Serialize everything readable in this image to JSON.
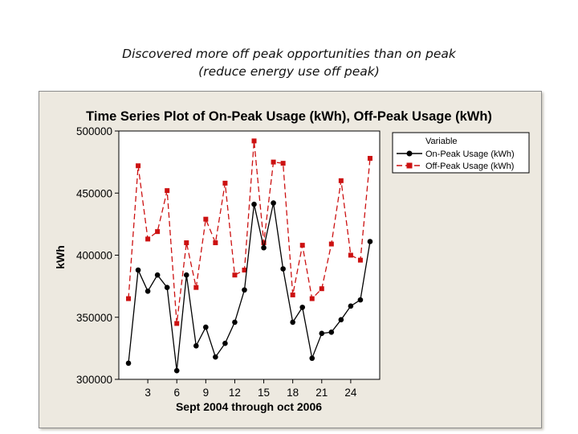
{
  "caption": {
    "line1": "Discovered more off peak opportunities than on peak",
    "line2": "(reduce energy use off peak)"
  },
  "chart_data": {
    "type": "line",
    "title": "Time Series Plot of On-Peak Usage (kWh), Off-Peak Usage (kWh)",
    "xlabel": "Sept 2004 through oct 2006",
    "ylabel": "kWh",
    "xlim": [
      0,
      27
    ],
    "ylim": [
      300000,
      500000
    ],
    "x_ticks": [
      3,
      6,
      9,
      12,
      15,
      18,
      21,
      24
    ],
    "x_tick_labels": [
      "3",
      "6",
      "9",
      "12",
      "15",
      "18",
      "21",
      "24"
    ],
    "y_ticks": [
      300000,
      350000,
      400000,
      450000,
      500000
    ],
    "y_tick_labels": [
      "300000",
      "350000",
      "400000",
      "450000",
      "500000"
    ],
    "x": [
      1,
      2,
      3,
      4,
      5,
      6,
      7,
      8,
      9,
      10,
      11,
      12,
      13,
      14,
      15,
      16,
      17,
      18,
      19,
      20,
      21,
      22,
      23,
      24,
      25,
      26
    ],
    "legend": {
      "title": "Variable",
      "position": "top-right"
    },
    "series": [
      {
        "name": "On-Peak Usage (kWh)",
        "color": "#000000",
        "marker": "circle",
        "line": "solid",
        "values": [
          313000,
          388000,
          371000,
          384000,
          374000,
          307000,
          384000,
          327000,
          342000,
          318000,
          329000,
          346000,
          372000,
          441000,
          406000,
          442000,
          389000,
          346000,
          358000,
          317000,
          337000,
          338000,
          348000,
          359000,
          364000,
          411000
        ]
      },
      {
        "name": "Off-Peak Usage (kWh)",
        "color": "#cc1111",
        "marker": "square",
        "line": "dashed",
        "values": [
          365000,
          472000,
          413000,
          419000,
          452000,
          345000,
          410000,
          374000,
          429000,
          410000,
          458000,
          384000,
          388000,
          492000,
          410000,
          475000,
          474000,
          368000,
          408000,
          365000,
          373000,
          409000,
          460000,
          400000,
          396000,
          478000
        ]
      }
    ]
  }
}
